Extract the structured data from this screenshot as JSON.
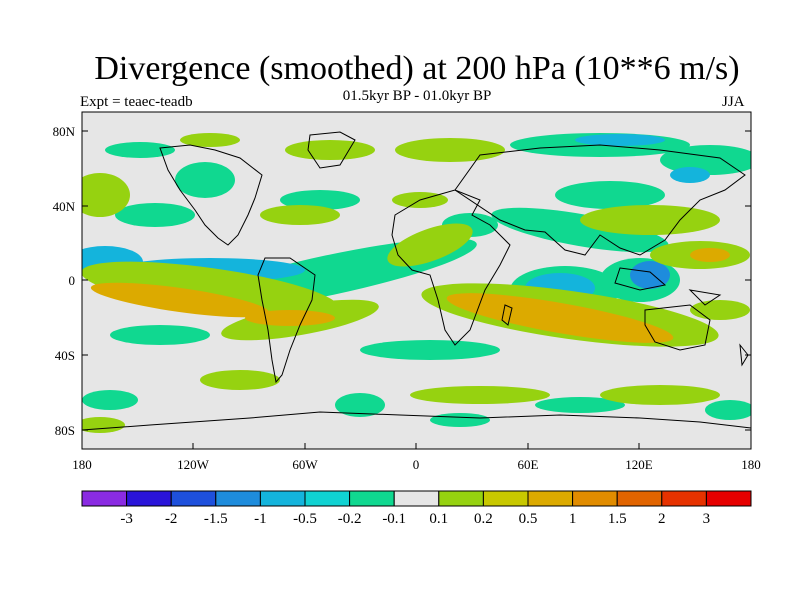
{
  "title": "Divergence (smoothed) at 200 hPa (10**6 m/s)",
  "subtitle": "01.5kyr BP - 01.0kyr BP",
  "experiment": "Expt = teaec-teadb",
  "season": "JJA",
  "axes": {
    "lat_ticks": [
      "80N",
      "40N",
      "0",
      "40S",
      "80S"
    ],
    "lon_ticks": [
      "180",
      "120W",
      "60W",
      "0",
      "60E",
      "120E",
      "180"
    ]
  },
  "colorbar": {
    "labels": [
      "-3",
      "-2",
      "-1.5",
      "-1",
      "-0.5",
      "-0.2",
      "-0.1",
      "0.1",
      "0.2",
      "0.5",
      "1",
      "1.5",
      "2",
      "3"
    ],
    "colors": [
      "#8a2be2",
      "#2a14d9",
      "#1e50dc",
      "#1e8cdc",
      "#14b4dc",
      "#10d2d2",
      "#10d890",
      "#e6e6e6",
      "#96d210",
      "#c8c800",
      "#dcaa00",
      "#e18c00",
      "#e16400",
      "#e63200",
      "#e60000"
    ]
  }
}
